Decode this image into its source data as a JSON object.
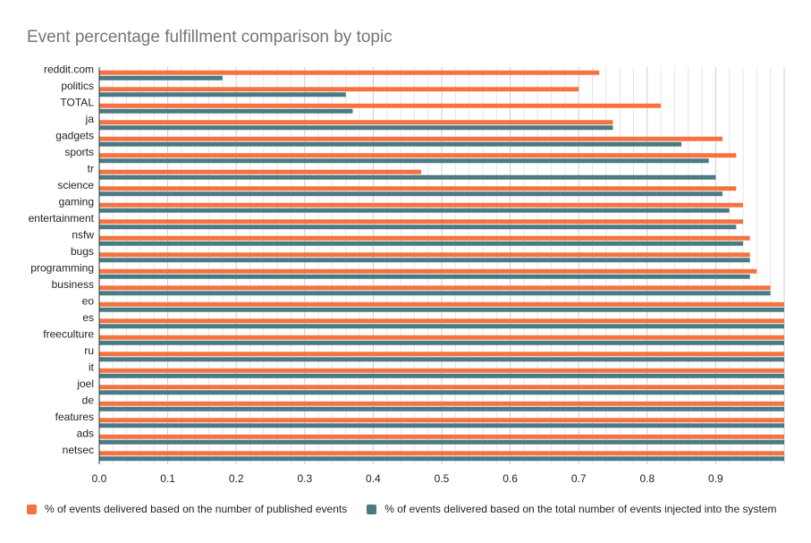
{
  "colors": {
    "series1": "#f47341",
    "series2": "#4a7a84",
    "grid": "#dddddd",
    "axis": "#333333"
  },
  "chart_data": {
    "type": "bar",
    "orientation": "horizontal",
    "title": "Event percentage fulfillment comparison by topic",
    "xlabel": "",
    "ylabel": "",
    "xlim": [
      0,
      1.0
    ],
    "x_ticks": [
      "0.0",
      "0.1",
      "0.2",
      "0.3",
      "0.4",
      "0.5",
      "0.6",
      "0.7",
      "0.8",
      "0.9"
    ],
    "grid": true,
    "legend_position": "bottom",
    "categories": [
      "reddit.com",
      "politics",
      "TOTAL",
      "ja",
      "gadgets",
      "sports",
      "tr",
      "science",
      "gaming",
      "entertainment",
      "nsfw",
      "bugs",
      "programming",
      "business",
      "eo",
      "es",
      "freeculture",
      "ru",
      "it",
      "joel",
      "de",
      "features",
      "ads",
      "netsec"
    ],
    "series": [
      {
        "name": "% of events delivered based on the number of published events",
        "values": [
          0.73,
          0.7,
          0.82,
          0.75,
          0.91,
          0.93,
          0.47,
          0.93,
          0.94,
          0.94,
          0.95,
          0.95,
          0.96,
          0.98,
          1.0,
          1.0,
          1.0,
          1.0,
          1.0,
          1.0,
          1.0,
          1.0,
          1.0,
          1.0
        ]
      },
      {
        "name": "% of events delivered based on the total number of events injected into the system",
        "values": [
          0.18,
          0.36,
          0.37,
          0.75,
          0.85,
          0.89,
          0.9,
          0.91,
          0.92,
          0.93,
          0.94,
          0.95,
          0.95,
          0.98,
          1.0,
          1.0,
          1.0,
          1.0,
          1.0,
          1.0,
          1.0,
          1.0,
          1.0,
          1.0
        ]
      }
    ]
  }
}
